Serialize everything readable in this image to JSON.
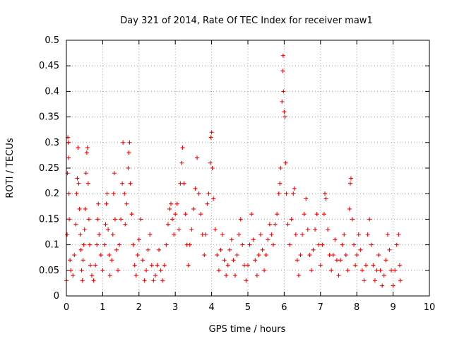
{
  "chart_data": {
    "type": "scatter",
    "title": "Day 321 of 2014, Rate Of TEC Index for receiver maw1",
    "xlabel": "GPS time / hours",
    "ylabel": "ROTI / TECUs",
    "xlim": [
      0,
      10
    ],
    "ylim": [
      0,
      0.5
    ],
    "x_ticks": [
      0,
      1,
      2,
      3,
      4,
      5,
      6,
      7,
      8,
      9,
      10
    ],
    "y_ticks": [
      0,
      0.05,
      0.1,
      0.15,
      0.2,
      0.25,
      0.3,
      0.35,
      0.4,
      0.45,
      0.5
    ],
    "y_tick_labels": [
      "0",
      "0.05",
      "0.1",
      "0.15",
      "0.2",
      "0.25",
      "0.3",
      "0.35",
      "0.4",
      "0.45",
      "0.5"
    ],
    "grid": true,
    "marker": "+",
    "color": "#ff0000",
    "series": [
      {
        "name": "ROTI",
        "points": [
          [
            0.0,
            0.03
          ],
          [
            0.02,
            0.12
          ],
          [
            0.03,
            0.24
          ],
          [
            0.04,
            0.31
          ],
          [
            0.05,
            0.3
          ],
          [
            0.06,
            0.27
          ],
          [
            0.07,
            0.2
          ],
          [
            0.08,
            0.15
          ],
          [
            0.1,
            0.07
          ],
          [
            0.12,
            0.05
          ],
          [
            0.18,
            0.04
          ],
          [
            0.22,
            0.08
          ],
          [
            0.26,
            0.14
          ],
          [
            0.28,
            0.2
          ],
          [
            0.3,
            0.23
          ],
          [
            0.32,
            0.29
          ],
          [
            0.34,
            0.22
          ],
          [
            0.36,
            0.17
          ],
          [
            0.38,
            0.12
          ],
          [
            0.4,
            0.09
          ],
          [
            0.42,
            0.05
          ],
          [
            0.44,
            0.03
          ],
          [
            0.46,
            0.07
          ],
          [
            0.48,
            0.1
          ],
          [
            0.5,
            0.13
          ],
          [
            0.52,
            0.17
          ],
          [
            0.54,
            0.24
          ],
          [
            0.56,
            0.28
          ],
          [
            0.58,
            0.29
          ],
          [
            0.6,
            0.22
          ],
          [
            0.62,
            0.15
          ],
          [
            0.64,
            0.1
          ],
          [
            0.66,
            0.06
          ],
          [
            0.7,
            0.04
          ],
          [
            0.75,
            0.03
          ],
          [
            0.8,
            0.06
          ],
          [
            0.84,
            0.1
          ],
          [
            0.86,
            0.15
          ],
          [
            0.88,
            0.18
          ],
          [
            0.9,
            0.12
          ],
          [
            0.95,
            0.08
          ],
          [
            1.0,
            0.05
          ],
          [
            1.05,
            0.1
          ],
          [
            1.08,
            0.14
          ],
          [
            1.1,
            0.18
          ],
          [
            1.12,
            0.2
          ],
          [
            1.15,
            0.13
          ],
          [
            1.18,
            0.08
          ],
          [
            1.2,
            0.04
          ],
          [
            1.25,
            0.07
          ],
          [
            1.28,
            0.12
          ],
          [
            1.3,
            0.2
          ],
          [
            1.32,
            0.24
          ],
          [
            1.34,
            0.15
          ],
          [
            1.38,
            0.09
          ],
          [
            1.42,
            0.05
          ],
          [
            1.46,
            0.1
          ],
          [
            1.5,
            0.15
          ],
          [
            1.54,
            0.22
          ],
          [
            1.56,
            0.3
          ],
          [
            1.6,
            0.2
          ],
          [
            1.62,
            0.14
          ],
          [
            1.66,
            0.18
          ],
          [
            1.7,
            0.25
          ],
          [
            1.72,
            0.28
          ],
          [
            1.74,
            0.3
          ],
          [
            1.76,
            0.22
          ],
          [
            1.8,
            0.16
          ],
          [
            1.84,
            0.1
          ],
          [
            1.88,
            0.06
          ],
          [
            1.92,
            0.04
          ],
          [
            1.96,
            0.08
          ],
          [
            2.0,
            0.11
          ],
          [
            2.05,
            0.15
          ],
          [
            2.1,
            0.07
          ],
          [
            2.15,
            0.03
          ],
          [
            2.2,
            0.05
          ],
          [
            2.25,
            0.09
          ],
          [
            2.3,
            0.12
          ],
          [
            2.35,
            0.06
          ],
          [
            2.4,
            0.03
          ],
          [
            2.45,
            0.04
          ],
          [
            2.5,
            0.06
          ],
          [
            2.55,
            0.09
          ],
          [
            2.6,
            0.05
          ],
          [
            2.65,
            0.03
          ],
          [
            2.7,
            0.06
          ],
          [
            2.75,
            0.1
          ],
          [
            2.8,
            0.14
          ],
          [
            2.84,
            0.17
          ],
          [
            2.88,
            0.18
          ],
          [
            2.92,
            0.15
          ],
          [
            2.96,
            0.12
          ],
          [
            3.0,
            0.16
          ],
          [
            3.05,
            0.18
          ],
          [
            3.1,
            0.13
          ],
          [
            3.14,
            0.22
          ],
          [
            3.18,
            0.26
          ],
          [
            3.2,
            0.29
          ],
          [
            3.24,
            0.22
          ],
          [
            3.28,
            0.16
          ],
          [
            3.32,
            0.1
          ],
          [
            3.36,
            0.06
          ],
          [
            3.4,
            0.1
          ],
          [
            3.45,
            0.13
          ],
          [
            3.5,
            0.17
          ],
          [
            3.55,
            0.21
          ],
          [
            3.6,
            0.27
          ],
          [
            3.65,
            0.2
          ],
          [
            3.7,
            0.16
          ],
          [
            3.75,
            0.12
          ],
          [
            3.8,
            0.08
          ],
          [
            3.84,
            0.12
          ],
          [
            3.88,
            0.18
          ],
          [
            3.92,
            0.2
          ],
          [
            3.96,
            0.26
          ],
          [
            3.98,
            0.31
          ],
          [
            4.0,
            0.32
          ],
          [
            4.02,
            0.25
          ],
          [
            4.05,
            0.19
          ],
          [
            4.1,
            0.13
          ],
          [
            4.15,
            0.08
          ],
          [
            4.2,
            0.05
          ],
          [
            4.25,
            0.09
          ],
          [
            4.3,
            0.12
          ],
          [
            4.35,
            0.07
          ],
          [
            4.4,
            0.04
          ],
          [
            4.45,
            0.06
          ],
          [
            4.5,
            0.09
          ],
          [
            4.55,
            0.11
          ],
          [
            4.6,
            0.07
          ],
          [
            4.65,
            0.04
          ],
          [
            4.7,
            0.08
          ],
          [
            4.75,
            0.12
          ],
          [
            4.8,
            0.15
          ],
          [
            4.85,
            0.1
          ],
          [
            4.9,
            0.06
          ],
          [
            4.95,
            0.03
          ],
          [
            5.0,
            0.06
          ],
          [
            5.05,
            0.1
          ],
          [
            5.1,
            0.16
          ],
          [
            5.15,
            0.11
          ],
          [
            5.2,
            0.07
          ],
          [
            5.25,
            0.04
          ],
          [
            5.3,
            0.08
          ],
          [
            5.35,
            0.12
          ],
          [
            5.4,
            0.09
          ],
          [
            5.45,
            0.05
          ],
          [
            5.5,
            0.08
          ],
          [
            5.55,
            0.11
          ],
          [
            5.6,
            0.14
          ],
          [
            5.65,
            0.12
          ],
          [
            5.7,
            0.1
          ],
          [
            5.75,
            0.14
          ],
          [
            5.8,
            0.16
          ],
          [
            5.85,
            0.2
          ],
          [
            5.88,
            0.22
          ],
          [
            5.9,
            0.25
          ],
          [
            5.94,
            0.38
          ],
          [
            5.96,
            0.44
          ],
          [
            5.97,
            0.47
          ],
          [
            5.98,
            0.4
          ],
          [
            6.0,
            0.36
          ],
          [
            6.02,
            0.35
          ],
          [
            6.04,
            0.26
          ],
          [
            6.06,
            0.2
          ],
          [
            6.1,
            0.14
          ],
          [
            6.15,
            0.1
          ],
          [
            6.2,
            0.15
          ],
          [
            6.25,
            0.2
          ],
          [
            6.28,
            0.21
          ],
          [
            6.32,
            0.12
          ],
          [
            6.36,
            0.07
          ],
          [
            6.4,
            0.04
          ],
          [
            6.45,
            0.08
          ],
          [
            6.5,
            0.12
          ],
          [
            6.55,
            0.16
          ],
          [
            6.6,
            0.19
          ],
          [
            6.65,
            0.13
          ],
          [
            6.7,
            0.08
          ],
          [
            6.75,
            0.05
          ],
          [
            6.8,
            0.09
          ],
          [
            6.85,
            0.13
          ],
          [
            6.9,
            0.16
          ],
          [
            6.95,
            0.1
          ],
          [
            7.0,
            0.06
          ],
          [
            7.05,
            0.1
          ],
          [
            7.1,
            0.16
          ],
          [
            7.12,
            0.2
          ],
          [
            7.15,
            0.19
          ],
          [
            7.2,
            0.13
          ],
          [
            7.25,
            0.08
          ],
          [
            7.3,
            0.05
          ],
          [
            7.35,
            0.08
          ],
          [
            7.4,
            0.11
          ],
          [
            7.45,
            0.07
          ],
          [
            7.5,
            0.04
          ],
          [
            7.55,
            0.07
          ],
          [
            7.6,
            0.1
          ],
          [
            7.65,
            0.12
          ],
          [
            7.7,
            0.08
          ],
          [
            7.75,
            0.05
          ],
          [
            7.8,
            0.17
          ],
          [
            7.82,
            0.22
          ],
          [
            7.84,
            0.23
          ],
          [
            7.88,
            0.15
          ],
          [
            7.92,
            0.1
          ],
          [
            7.96,
            0.06
          ],
          [
            8.0,
            0.08
          ],
          [
            8.05,
            0.12
          ],
          [
            8.1,
            0.09
          ],
          [
            8.15,
            0.05
          ],
          [
            8.2,
            0.03
          ],
          [
            8.25,
            0.06
          ],
          [
            8.3,
            0.12
          ],
          [
            8.35,
            0.15
          ],
          [
            8.4,
            0.1
          ],
          [
            8.45,
            0.06
          ],
          [
            8.5,
            0.03
          ],
          [
            8.55,
            0.05
          ],
          [
            8.6,
            0.08
          ],
          [
            8.65,
            0.05
          ],
          [
            8.7,
            0.02
          ],
          [
            8.75,
            0.04
          ],
          [
            8.8,
            0.07
          ],
          [
            8.85,
            0.12
          ],
          [
            8.9,
            0.09
          ],
          [
            8.95,
            0.05
          ],
          [
            9.0,
            0.02
          ],
          [
            9.05,
            0.05
          ],
          [
            9.1,
            0.1
          ],
          [
            9.15,
            0.12
          ],
          [
            9.18,
            0.06
          ],
          [
            9.2,
            0.03
          ]
        ]
      }
    ]
  }
}
